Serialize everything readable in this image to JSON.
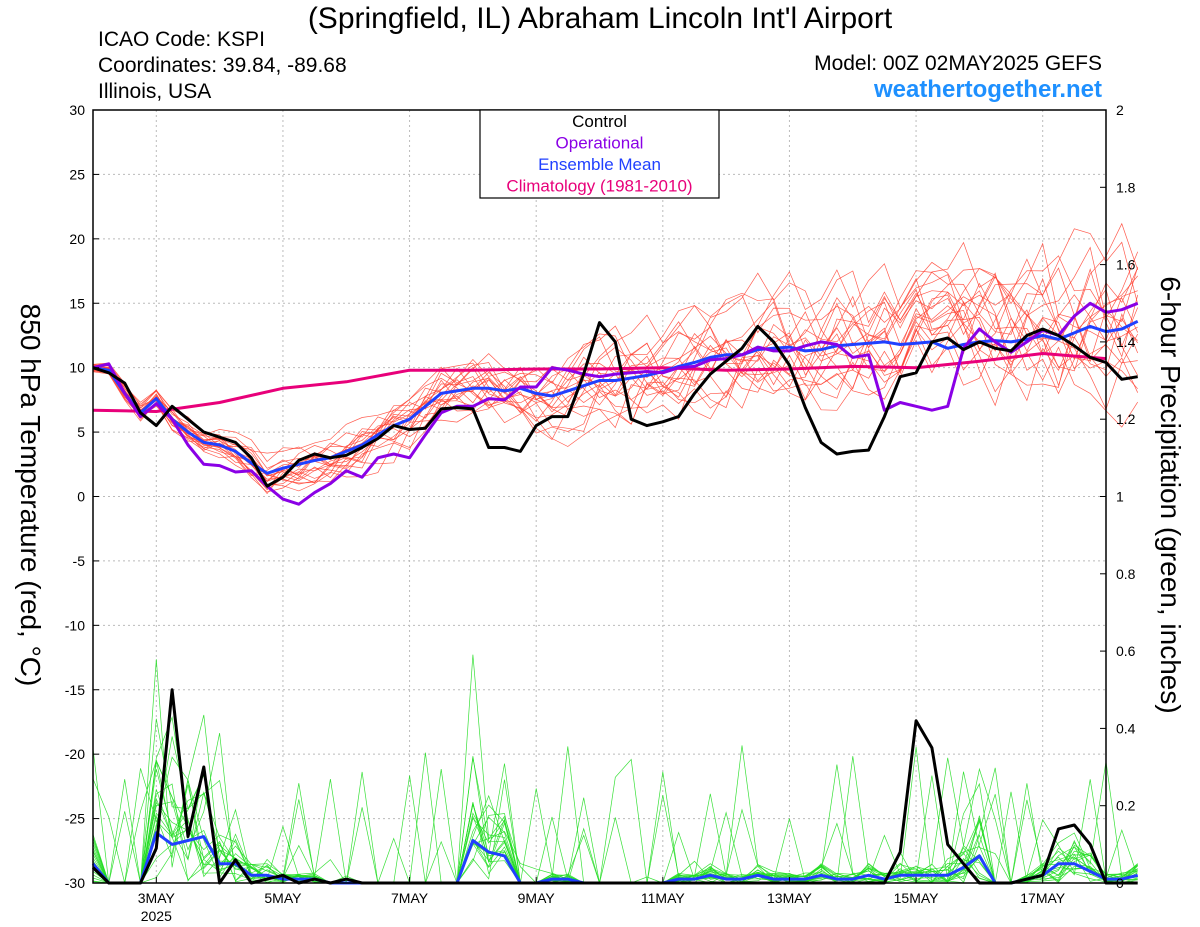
{
  "header": {
    "title": "(Springfield, IL) Abraham Lincoln Int'l Airport",
    "icao": "ICAO Code: KSPI",
    "coordinates": "Coordinates: 39.84, -89.68",
    "region": "Illinois, USA",
    "model": "Model: 00Z 02MAY2025 GEFS",
    "site": "weathertogether.net"
  },
  "colors": {
    "control": "#000000",
    "operational": "#8a00e6",
    "ensemble_mean": "#2040ff",
    "climatology": "#e8007a",
    "temp_members": "#ff4030",
    "precip_members": "#22dd22",
    "site": "#1e90ff"
  },
  "chart_data": {
    "type": "line",
    "x_unit": "hours after 00Z 02MAY2025 (6-hourly)",
    "x_range": [
      0,
      384
    ],
    "x_ticks": [
      {
        "x": 24,
        "label": "3MAY",
        "sub": "2025"
      },
      {
        "x": 72,
        "label": "5MAY"
      },
      {
        "x": 120,
        "label": "7MAY"
      },
      {
        "x": 168,
        "label": "9MAY"
      },
      {
        "x": 216,
        "label": "11MAY"
      },
      {
        "x": 264,
        "label": "13MAY"
      },
      {
        "x": 312,
        "label": "15MAY"
      },
      {
        "x": 360,
        "label": "17MAY"
      }
    ],
    "ylabel_left": "850 hPa Temperature (red, °C)",
    "ylabel_right": "6-hour Precipitation (green, inches)",
    "ylim_left": [
      -30,
      30
    ],
    "ylim_right": [
      0,
      2
    ],
    "yticks_left": [
      30,
      25,
      20,
      15,
      10,
      5,
      0,
      -5,
      -10,
      -15,
      -20,
      -25,
      -30
    ],
    "yticks_right": [
      2,
      1.8,
      1.6,
      1.4,
      1.2,
      1,
      0.8,
      0.6,
      0.4,
      0.2,
      0
    ],
    "grid": true,
    "legend": {
      "position": "top-center",
      "entries": [
        "Control",
        "Operational",
        "Ensemble Mean",
        "Climatology (1981-2010)"
      ]
    },
    "series": [
      {
        "name": "Control",
        "axis": "left",
        "values": [
          10,
          9.6,
          8.8,
          6.5,
          5.5,
          7.0,
          6.0,
          5.0,
          4.6,
          4.2,
          3.0,
          0.8,
          1.5,
          2.8,
          3.3,
          3.0,
          3.2,
          3.8,
          4.5,
          5.5,
          5.2,
          5.3,
          6.8,
          6.9,
          6.8,
          3.8,
          3.8,
          3.5,
          5.5,
          6.2,
          6.2,
          9.5,
          13.5,
          12.0,
          6.0,
          5.5,
          5.8,
          6.2,
          8.0,
          9.5,
          10.5,
          11.5,
          13.2,
          12.0,
          10.2,
          6.9,
          4.2,
          3.3,
          3.5,
          3.6,
          6.2,
          9.3,
          9.6,
          12.0,
          12.3,
          11.4,
          12.0,
          11.5,
          11.3,
          12.5,
          13.0,
          12.5,
          11.7,
          10.8,
          10.4,
          9.1,
          9.3
        ]
      },
      {
        "name": "Operational",
        "axis": "left",
        "values": [
          10,
          10.3,
          8.0,
          6.2,
          7.2,
          6.0,
          4.0,
          2.5,
          2.4,
          1.9,
          2.0,
          0.8,
          -0.2,
          -0.6,
          0.3,
          1.0,
          2.0,
          1.5,
          3.0,
          3.3,
          3.0,
          4.8,
          6.5,
          7.0,
          7.0,
          7.6,
          7.5,
          8.5,
          8.5,
          10.0,
          9.8,
          9.5,
          9.3,
          9.5,
          9.6,
          9.7,
          9.6,
          10.0,
          10.1,
          10.6,
          10.7,
          11.0,
          11.6,
          11.3,
          11.3,
          11.7,
          12.0,
          11.8,
          10.8,
          11.0,
          6.7,
          7.3,
          7.0,
          6.7,
          7.0,
          11.5,
          13.0,
          12.0,
          11.2,
          12.0,
          12.9,
          12.5,
          14.0,
          15.0,
          14.3,
          14.5,
          15.0
        ]
      },
      {
        "name": "Ensemble Mean",
        "axis": "left",
        "values": [
          10,
          9.8,
          8.0,
          6.5,
          7.6,
          6.0,
          5.0,
          4.2,
          4.0,
          3.5,
          2.6,
          1.8,
          2.2,
          2.5,
          2.8,
          3.0,
          3.5,
          4.0,
          4.8,
          5.5,
          6.0,
          7.0,
          8.0,
          8.2,
          8.4,
          8.4,
          8.2,
          8.4,
          8.0,
          7.8,
          8.2,
          8.6,
          9.0,
          9.0,
          9.2,
          9.4,
          9.7,
          10.1,
          10.4,
          10.8,
          11.0,
          11.0,
          11.4,
          11.5,
          11.6,
          11.3,
          11.4,
          11.7,
          11.8,
          11.9,
          12.0,
          11.8,
          11.9,
          12.0,
          11.5,
          11.8,
          12.0,
          12.1,
          12.0,
          12.2,
          12.5,
          12.2,
          12.7,
          13.2,
          12.8,
          13.0,
          13.6
        ]
      },
      {
        "name": "Climatology (1981-2010)",
        "axis": "left",
        "x": [
          0,
          24,
          48,
          72,
          96,
          120,
          144,
          168,
          192,
          216,
          240,
          264,
          288,
          312,
          336,
          360,
          384
        ],
        "values": [
          6.7,
          6.6,
          7.3,
          8.4,
          8.9,
          9.8,
          9.8,
          9.9,
          9.9,
          10.0,
          9.8,
          9.9,
          10.1,
          10.0,
          10.5,
          11.1,
          10.7
        ]
      },
      {
        "name": "Control",
        "axis": "right",
        "values": [
          0.04,
          0.0,
          0.0,
          0.0,
          0.09,
          0.5,
          0.12,
          0.3,
          0.0,
          0.06,
          0.0,
          0.01,
          0.02,
          0.0,
          0.01,
          0.0,
          0.01,
          0.0,
          0.0,
          0.0,
          0.0,
          0.0,
          0.0,
          0.0,
          0.0,
          0.0,
          0.0,
          0.0,
          0.0,
          0.0,
          0.0,
          0.0,
          0.0,
          0.0,
          0.0,
          0.0,
          0.0,
          0.0,
          0.0,
          0.0,
          0.0,
          0.0,
          0.0,
          0.0,
          0.0,
          0.0,
          0.0,
          0.0,
          0.0,
          0.0,
          0.0,
          0.08,
          0.42,
          0.35,
          0.1,
          0.05,
          0.0,
          0.0,
          0.0,
          0.01,
          0.02,
          0.14,
          0.15,
          0.1,
          0.0,
          0.0,
          0.0
        ]
      },
      {
        "name": "Ensemble Mean",
        "axis": "right",
        "values": [
          0.05,
          0.0,
          0.0,
          0.0,
          0.13,
          0.1,
          0.11,
          0.12,
          0.05,
          0.05,
          0.02,
          0.02,
          0.01,
          0.01,
          0.01,
          0.0,
          0.0,
          0.0,
          0.0,
          0.0,
          0.0,
          0.0,
          0.0,
          0.0,
          0.11,
          0.08,
          0.07,
          0.0,
          0.0,
          0.01,
          0.01,
          0.0,
          0.0,
          0.0,
          0.0,
          0.0,
          0.0,
          0.01,
          0.01,
          0.02,
          0.01,
          0.01,
          0.02,
          0.01,
          0.01,
          0.01,
          0.02,
          0.01,
          0.01,
          0.02,
          0.01,
          0.02,
          0.02,
          0.02,
          0.02,
          0.04,
          0.07,
          0.0,
          0.0,
          0.01,
          0.02,
          0.05,
          0.05,
          0.03,
          0.01,
          0.01,
          0.02
        ]
      }
    ]
  }
}
